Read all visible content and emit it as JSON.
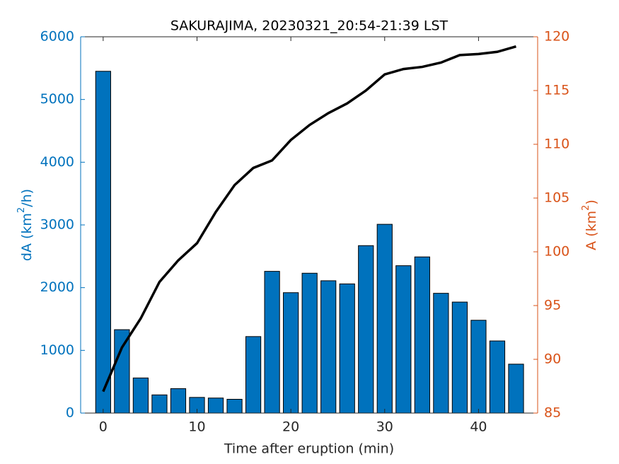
{
  "chart_data": {
    "type": "bar-line",
    "title": "SAKURAJIMA, 20230321_20:54-21:39 LST",
    "xlabel": "Time after eruption (min)",
    "ylabel": [
      "dA (km",
      "2",
      "/h)"
    ],
    "y2label": [
      "A (km",
      "2",
      ")"
    ],
    "x": [
      0,
      2,
      4,
      6,
      8,
      10,
      12,
      14,
      16,
      18,
      20,
      22,
      24,
      26,
      28,
      30,
      32,
      34,
      36,
      38,
      40,
      42,
      44
    ],
    "series": [
      {
        "type": "bar",
        "color": "#0072bd",
        "values": [
          5450,
          1330,
          560,
          290,
          390,
          250,
          240,
          220,
          1220,
          2260,
          1920,
          2230,
          2110,
          2060,
          2670,
          3010,
          2350,
          2490,
          1910,
          1770,
          1480,
          1150,
          780
        ]
      },
      {
        "type": "line",
        "axis": "y2",
        "color": "#000000",
        "values": [
          87.0,
          91.1,
          93.8,
          97.2,
          99.2,
          100.8,
          103.7,
          106.2,
          107.8,
          108.5,
          110.4,
          111.8,
          112.9,
          113.8,
          115.0,
          116.5,
          117.0,
          117.2,
          117.6,
          118.3,
          118.4,
          118.6,
          119.1
        ]
      }
    ],
    "xlim": [
      -2.4,
      46.3
    ],
    "xticks": [
      0,
      10,
      20,
      30,
      40
    ],
    "ylim": [
      0,
      6000
    ],
    "yticks": [
      0,
      1000,
      2000,
      3000,
      4000,
      5000,
      6000
    ],
    "ycolor": "#0072bd",
    "y2lim": [
      85,
      120
    ],
    "y2ticks": [
      85,
      90,
      95,
      100,
      105,
      110,
      115,
      120
    ],
    "y2color": "#d95319"
  }
}
